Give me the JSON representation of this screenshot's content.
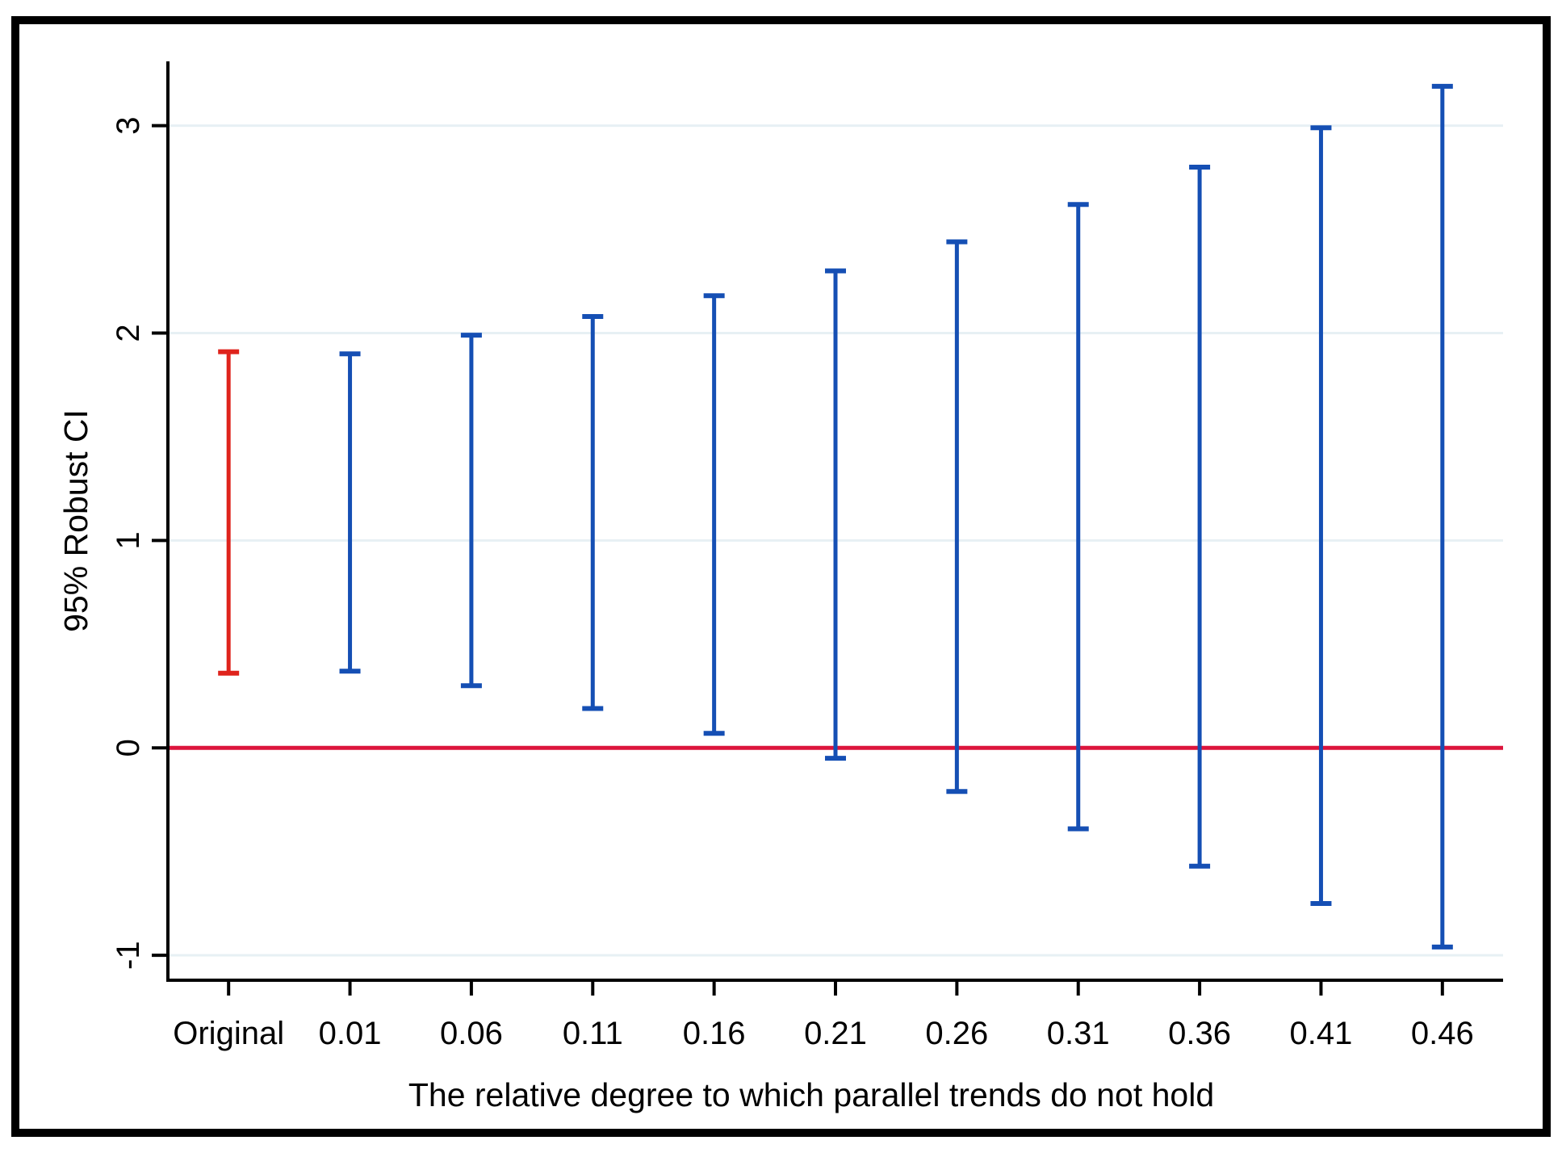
{
  "chart_data": {
    "type": "error-bar",
    "xlabel": "The relative degree to which parallel trends do not hold",
    "ylabel": "95% Robust CI",
    "categories": [
      "Original",
      "0.01",
      "0.06",
      "0.11",
      "0.16",
      "0.21",
      "0.26",
      "0.31",
      "0.36",
      "0.41",
      "0.46"
    ],
    "series": [
      {
        "name": "95% Robust CI",
        "ci_low": [
          0.36,
          0.37,
          0.3,
          0.19,
          0.07,
          -0.05,
          -0.21,
          -0.39,
          -0.57,
          -0.75,
          -0.96
        ],
        "ci_high": [
          1.91,
          1.9,
          1.99,
          2.08,
          2.18,
          2.3,
          2.44,
          2.62,
          2.8,
          2.99,
          3.19
        ]
      }
    ],
    "bar_colors": [
      "#df231c",
      "#154fb4",
      "#154fb4",
      "#154fb4",
      "#154fb4",
      "#154fb4",
      "#154fb4",
      "#154fb4",
      "#154fb4",
      "#154fb4",
      "#154fb4"
    ],
    "yticks": [
      {
        "value": 3,
        "label": "3"
      },
      {
        "value": 2,
        "label": "2"
      },
      {
        "value": 1,
        "label": "1"
      },
      {
        "value": 0,
        "label": "0"
      },
      {
        "value": -1,
        "label": "-1"
      }
    ],
    "ylim": [
      -1.12,
      3.31
    ],
    "zero_line": {
      "y": 0,
      "color": "#dc143c"
    },
    "grid": true,
    "gridline_color": "#e7f0f4",
    "axis_color": "#000000",
    "legend": "none"
  }
}
